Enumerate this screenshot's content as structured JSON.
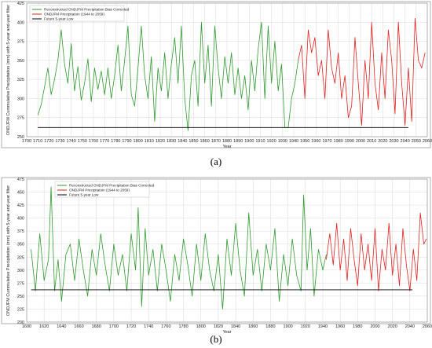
{
  "chart_data": [
    {
      "type": "line",
      "panel_label": "(a)",
      "xlabel": "Year",
      "ylabel": "ONDJFM Cummulative Precipitation (mm) with 5-year and-year filter",
      "xlim": [
        1700,
        2060
      ],
      "ylim": [
        250,
        425
      ],
      "x_ticks": [
        1700,
        1710,
        1720,
        1730,
        1740,
        1750,
        1760,
        1770,
        1780,
        1790,
        1800,
        1810,
        1820,
        1830,
        1840,
        1850,
        1860,
        1870,
        1880,
        1890,
        1900,
        1910,
        1920,
        1930,
        1940,
        1950,
        1960,
        1970,
        1980,
        1990,
        2000,
        2010,
        2020,
        2030,
        2040,
        2050,
        2060
      ],
      "y_ticks": [
        250,
        275,
        300,
        325,
        350,
        375,
        400,
        425
      ],
      "grid": true,
      "legend_position": "top-left",
      "series": [
        {
          "name": "Reconstructed ONDJFM Precipitation Bias Corrected",
          "color": "#2e9a2e",
          "x": [
            1710,
            1713,
            1716,
            1719,
            1722,
            1725,
            1728,
            1731,
            1734,
            1737,
            1740,
            1743,
            1746,
            1749,
            1752,
            1755,
            1758,
            1761,
            1764,
            1767,
            1770,
            1773,
            1776,
            1779,
            1782,
            1785,
            1788,
            1791,
            1794,
            1797,
            1800,
            1803,
            1806,
            1809,
            1812,
            1815,
            1818,
            1821,
            1824,
            1827,
            1830,
            1833,
            1836,
            1839,
            1842,
            1845,
            1848,
            1851,
            1854,
            1857,
            1860,
            1863,
            1866,
            1869,
            1872,
            1875,
            1878,
            1881,
            1884,
            1887,
            1890,
            1893,
            1896,
            1899,
            1902,
            1905,
            1908,
            1911,
            1914,
            1917,
            1920,
            1923,
            1926,
            1929,
            1932,
            1935,
            1938,
            1941,
            1944
          ],
          "values": [
            278,
            292,
            315,
            340,
            305,
            325,
            350,
            390,
            345,
            320,
            372,
            310,
            342,
            298,
            320,
            352,
            296,
            340,
            312,
            336,
            305,
            340,
            300,
            330,
            370,
            310,
            350,
            395,
            305,
            290,
            340,
            395,
            330,
            300,
            355,
            270,
            340,
            310,
            360,
            300,
            345,
            380,
            320,
            395,
            300,
            258,
            330,
            350,
            290,
            400,
            320,
            370,
            290,
            395,
            340,
            300,
            355,
            320,
            360,
            305,
            340,
            300,
            330,
            285,
            350,
            310,
            365,
            400,
            300,
            395,
            320,
            375,
            310,
            345,
            262,
            262,
            300,
            320,
            350
          ]
        },
        {
          "name": "ONDJFM Precipitation (1944 to 2059)",
          "color": "#e02020",
          "x": [
            1944,
            1947,
            1950,
            1953,
            1956,
            1959,
            1962,
            1965,
            1968,
            1971,
            1974,
            1977,
            1980,
            1983,
            1986,
            1989,
            1992,
            1995,
            1998,
            2001,
            2004,
            2007,
            2010,
            2013,
            2016,
            2019,
            2022,
            2025,
            2028,
            2031,
            2034,
            2037,
            2040,
            2043,
            2046,
            2049,
            2052,
            2055,
            2058
          ],
          "values": [
            350,
            370,
            300,
            390,
            360,
            380,
            330,
            350,
            300,
            390,
            340,
            320,
            360,
            300,
            330,
            275,
            290,
            380,
            320,
            265,
            350,
            300,
            400,
            320,
            285,
            360,
            300,
            390,
            350,
            280,
            400,
            320,
            265,
            340,
            270,
            405,
            350,
            340,
            360
          ]
        },
        {
          "name": "Future 5-year Low",
          "color": "#000000",
          "x": [
            1710,
            2043
          ],
          "values": [
            262,
            262
          ]
        }
      ]
    },
    {
      "type": "line",
      "panel_label": "(b)",
      "xlabel": "Year",
      "ylabel": "ONDJFM Cummulative Precipitation (mm) with 5-year and-year filter",
      "xlim": [
        1600,
        2060
      ],
      "ylim": [
        200,
        475
      ],
      "x_ticks": [
        1600,
        1620,
        1640,
        1660,
        1680,
        1700,
        1720,
        1740,
        1760,
        1780,
        1800,
        1820,
        1840,
        1860,
        1880,
        1900,
        1920,
        1940,
        1960,
        1980,
        2000,
        2020,
        2040,
        2060
      ],
      "y_ticks": [
        200,
        225,
        250,
        275,
        300,
        325,
        350,
        375,
        400,
        425,
        450,
        475
      ],
      "grid": true,
      "legend_position": "top-left",
      "series": [
        {
          "name": "Reconstructed ONDJFM Precipitation Bias Corrected",
          "color": "#2e9a2e",
          "x": [
            1605,
            1610,
            1615,
            1620,
            1625,
            1628,
            1632,
            1636,
            1640,
            1645,
            1650,
            1655,
            1660,
            1665,
            1670,
            1675,
            1680,
            1685,
            1690,
            1695,
            1700,
            1705,
            1710,
            1715,
            1720,
            1725,
            1728,
            1732,
            1736,
            1740,
            1745,
            1750,
            1755,
            1760,
            1765,
            1770,
            1775,
            1780,
            1785,
            1790,
            1795,
            1800,
            1805,
            1810,
            1815,
            1820,
            1825,
            1830,
            1835,
            1840,
            1845,
            1850,
            1855,
            1860,
            1865,
            1870,
            1875,
            1880,
            1885,
            1890,
            1895,
            1900,
            1905,
            1910,
            1915,
            1918,
            1922,
            1926,
            1930,
            1935,
            1940,
            1944
          ],
          "values": [
            340,
            260,
            370,
            280,
            320,
            460,
            260,
            320,
            240,
            330,
            350,
            280,
            360,
            300,
            250,
            340,
            290,
            370,
            310,
            260,
            350,
            290,
            330,
            260,
            370,
            300,
            420,
            230,
            380,
            290,
            340,
            260,
            350,
            300,
            240,
            330,
            280,
            360,
            310,
            250,
            350,
            280,
            370,
            300,
            260,
            330,
            225,
            360,
            290,
            390,
            300,
            250,
            410,
            290,
            340,
            260,
            350,
            300,
            380,
            240,
            330,
            270,
            360,
            290,
            260,
            445,
            300,
            380,
            250,
            340,
            300,
            330
          ]
        },
        {
          "name": "ONDJFM Precipitation (1944 to 2059)",
          "color": "#e02020",
          "x": [
            1944,
            1948,
            1952,
            1956,
            1960,
            1964,
            1968,
            1972,
            1976,
            1980,
            1984,
            1988,
            1992,
            1996,
            2000,
            2004,
            2008,
            2012,
            2016,
            2020,
            2024,
            2028,
            2032,
            2036,
            2040,
            2044,
            2048,
            2052,
            2056,
            2059
          ],
          "values": [
            320,
            370,
            310,
            390,
            300,
            360,
            280,
            380,
            320,
            270,
            370,
            300,
            350,
            280,
            380,
            260,
            340,
            300,
            390,
            290,
            350,
            270,
            380,
            310,
            260,
            340,
            280,
            410,
            350,
            360
          ]
        },
        {
          "name": "Future 5-year Low",
          "color": "#000000",
          "x": [
            1605,
            2043
          ],
          "values": [
            262,
            262
          ]
        }
      ]
    }
  ]
}
